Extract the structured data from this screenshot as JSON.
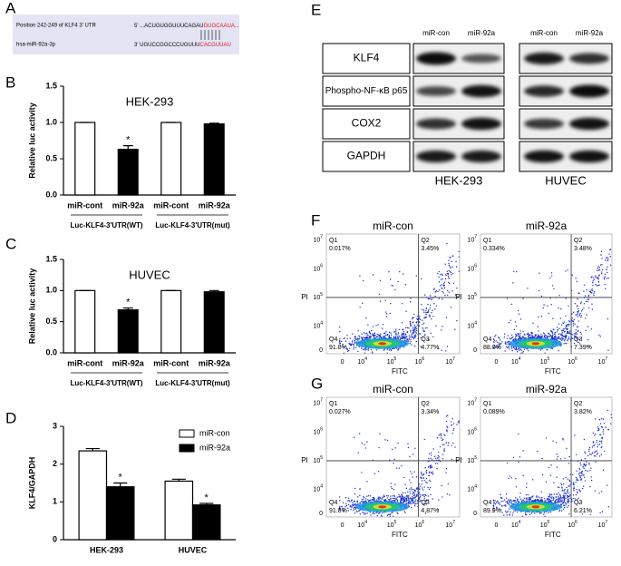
{
  "panel_labels": [
    "A",
    "B",
    "C",
    "D",
    "E",
    "F",
    "G"
  ],
  "sequence": {
    "target_label": "Position 242-249 of KLF4 3' UTR",
    "target_prefix": "5'",
    "target_seq": "...ACUGUGGUUUCAGAU",
    "target_seed": "GUGCAAUA...",
    "mirna_label": "hsa-miR-92a-3p",
    "mirna_prefix": "3'",
    "mirna_seq": "UGUCCGGCCCUGUUU",
    "mirna_seed": "CACGUUAU"
  },
  "chart_data": [
    {
      "type": "bar",
      "title": "HEK-293",
      "y_label": "Relative luc activity",
      "categories": [
        "miR-cont",
        "miR-92a",
        "miR-cont",
        "miR-92a"
      ],
      "values": [
        1.0,
        0.63,
        1.0,
        0.98
      ],
      "errors": [
        0,
        0.05,
        0,
        0.01
      ],
      "colors": [
        "#ffffff",
        "#000000",
        "#ffffff",
        "#000000"
      ],
      "significance": [
        null,
        "*",
        null,
        null
      ],
      "groups": [
        "Luc-KLF4-3'UTR(WT)",
        "Luc-KLF4-3'UTR(mut)"
      ],
      "ylim": [
        0,
        1.5
      ],
      "yticks": [
        {
          "value": 0,
          "label": "0.0"
        },
        0.5,
        {
          "value": 1,
          "label": "1.0"
        },
        1.5
      ]
    },
    {
      "type": "bar",
      "title": "HUVEC",
      "y_label": "Relative luc activity",
      "categories": [
        "miR-cont",
        "miR-92a",
        "miR-cont",
        "miR-92a"
      ],
      "values": [
        1.0,
        0.69,
        1.0,
        0.98
      ],
      "errors": [
        0,
        0.03,
        0,
        0.02
      ],
      "colors": [
        "#ffffff",
        "#000000",
        "#ffffff",
        "#000000"
      ],
      "significance": [
        null,
        "*",
        null,
        null
      ],
      "groups": [
        "Luc-KLF4-3'UTR(WT)",
        "Luc-KLF4-3'UTR(mut)"
      ],
      "ylim": [
        0,
        1.5
      ],
      "yticks": [
        {
          "value": 0,
          "label": "0.0"
        },
        0.5,
        {
          "value": 1,
          "label": "1.0"
        },
        1.5
      ]
    },
    {
      "type": "bar",
      "y_label": "KLF4/GAPDH",
      "categories": [
        "HEK-293",
        "HUVEC"
      ],
      "series": [
        {
          "name": "miR-con",
          "color": "#ffffff",
          "values": [
            2.35,
            1.55
          ],
          "errors": [
            0.06,
            0.05
          ],
          "significance": [
            null,
            null
          ]
        },
        {
          "name": "miR-92a",
          "color": "#000000",
          "values": [
            1.4,
            0.92
          ],
          "errors": [
            0.1,
            0.04
          ],
          "significance": [
            "*",
            "*"
          ]
        }
      ],
      "legend": "top-right",
      "ylim": [
        0,
        3
      ],
      "yticks": [
        0,
        1,
        2,
        3
      ]
    }
  ],
  "western_blot": {
    "columns": [
      "miR-con",
      "miR-92a",
      "miR-con",
      "miR-92a"
    ],
    "rows": [
      "KLF4",
      "Phospho-NF-κB p65",
      "COX2",
      "GAPDH"
    ],
    "cell_lines": [
      "HEK-293",
      "HUVEC"
    ]
  },
  "flow_cytometry": {
    "x_label": "FITC",
    "y_label": "PI",
    "x_ticks": [
      {
        "base": "0"
      },
      {
        "base": "10",
        "exponent": "4"
      },
      {
        "base": "10",
        "exponent": "5"
      },
      {
        "base": "10",
        "exponent": "6"
      },
      {
        "base": "10",
        "exponent": "7"
      }
    ],
    "y_ticks": [
      {
        "base": "10",
        "exponent": "7"
      },
      {
        "base": "10",
        "exponent": "6"
      },
      {
        "base": "10",
        "exponent": "5"
      },
      {
        "base": "10",
        "exponent": "4"
      },
      {
        "base": "0"
      }
    ],
    "panels": [
      {
        "plots": [
          {
            "title": "miR-con",
            "quadrants": [
              {
                "name": "Q1",
                "percent": "0.017%"
              },
              {
                "name": "Q2",
                "percent": "3.45%"
              },
              {
                "name": "Q3",
                "percent": "4.77%"
              },
              {
                "name": "Q4",
                "percent": "91.8%"
              }
            ]
          },
          {
            "title": "miR-92a",
            "quadrants": [
              {
                "name": "Q1",
                "percent": "0.334%"
              },
              {
                "name": "Q2",
                "percent": "3.48%"
              },
              {
                "name": "Q3",
                "percent": "7.39%"
              },
              {
                "name": "Q4",
                "percent": "88.8%"
              }
            ]
          }
        ]
      },
      {
        "plots": [
          {
            "title": "miR-con",
            "quadrants": [
              {
                "name": "Q1",
                "percent": "0.027%"
              },
              {
                "name": "Q2",
                "percent": "3.34%"
              },
              {
                "name": "Q3",
                "percent": "4.87%"
              },
              {
                "name": "Q4",
                "percent": "91.8%"
              }
            ]
          },
          {
            "title": "miR-92a",
            "quadrants": [
              {
                "name": "Q1",
                "percent": "0.089%"
              },
              {
                "name": "Q2",
                "percent": "3.82%"
              },
              {
                "name": "Q3",
                "percent": "6.21%"
              },
              {
                "name": "Q4",
                "percent": "89.9%"
              }
            ]
          }
        ]
      }
    ]
  }
}
